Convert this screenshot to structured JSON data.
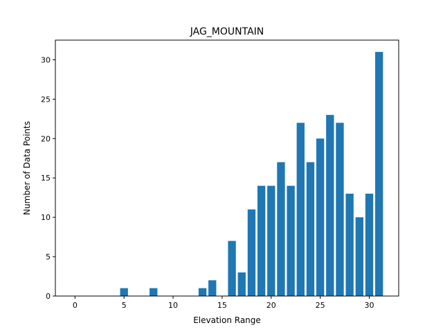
{
  "chart_data": {
    "type": "bar",
    "title": "JAG_MOUNTAIN",
    "xlabel": "Elevation Range",
    "ylabel": "Number of Data Points",
    "xlim": [
      -2,
      33
    ],
    "ylim": [
      0,
      32.5
    ],
    "xticks": [
      0,
      5,
      10,
      15,
      20,
      25,
      30
    ],
    "yticks": [
      0,
      5,
      10,
      15,
      20,
      25,
      30
    ],
    "bar_color": "#1f77b4",
    "bar_width": 0.8,
    "x": [
      5,
      8,
      13,
      14,
      16,
      17,
      18,
      19,
      20,
      21,
      22,
      23,
      24,
      25,
      26,
      27,
      28,
      29,
      30,
      31
    ],
    "values": [
      1,
      1,
      1,
      2,
      7,
      3,
      11,
      14,
      14,
      17,
      14,
      22,
      17,
      20,
      23,
      22,
      13,
      10,
      13,
      31
    ]
  }
}
